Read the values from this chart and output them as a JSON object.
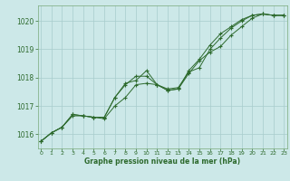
{
  "title": "Graphe pression niveau de la mer (hPa)",
  "hours": [
    0,
    1,
    2,
    3,
    4,
    5,
    6,
    7,
    8,
    9,
    10,
    11,
    12,
    13,
    14,
    15,
    16,
    17,
    18,
    19,
    20,
    21,
    22,
    23
  ],
  "series1": [
    1015.75,
    1016.05,
    1016.25,
    1016.7,
    1016.65,
    1016.6,
    1016.6,
    1017.3,
    1017.75,
    1018.05,
    1018.05,
    1017.75,
    1017.6,
    1017.65,
    1018.2,
    1018.35,
    1019.0,
    1019.4,
    1019.75,
    1020.0,
    1020.2,
    1020.25,
    1020.2,
    1020.2
  ],
  "series2": [
    1015.75,
    1016.05,
    1016.25,
    1016.65,
    1016.65,
    1016.6,
    1016.55,
    1017.0,
    1017.3,
    1017.75,
    1017.8,
    1017.75,
    1017.55,
    1017.6,
    1018.15,
    1018.6,
    1018.9,
    1019.1,
    1019.5,
    1019.8,
    1020.1,
    1020.25,
    1020.2,
    1020.2
  ],
  "series3": [
    1015.75,
    1016.05,
    1016.25,
    1016.7,
    1016.65,
    1016.6,
    1016.6,
    1017.3,
    1017.8,
    1017.9,
    1018.25,
    1017.75,
    1017.55,
    1017.6,
    1018.25,
    1018.65,
    1019.15,
    1019.55,
    1019.8,
    1020.05,
    1020.2,
    1020.25,
    1020.2,
    1020.2
  ],
  "line_color": "#2d6a2d",
  "bg_color": "#cce8e8",
  "grid_color": "#a8cccc",
  "ylim": [
    1015.5,
    1020.55
  ],
  "yticks": [
    1016,
    1017,
    1018,
    1019,
    1020
  ],
  "xticks": [
    0,
    1,
    2,
    3,
    4,
    5,
    6,
    7,
    8,
    9,
    10,
    11,
    12,
    13,
    14,
    15,
    16,
    17,
    18,
    19,
    20,
    21,
    22,
    23
  ]
}
